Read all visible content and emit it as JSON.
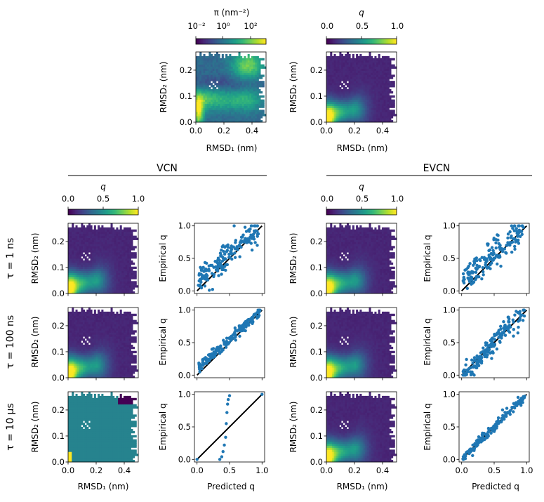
{
  "colors": {
    "viridis": [
      "#440154",
      "#482878",
      "#3e4989",
      "#31688e",
      "#26828e",
      "#1f9e89",
      "#35b779",
      "#6ece58",
      "#b5de2b",
      "#fde725"
    ],
    "scatter": "#1f77b4",
    "diagonal": "#000000",
    "background": "#ffffff"
  },
  "sections": {
    "vcn": "VCN",
    "evcn": "EVCN"
  },
  "row_labels": [
    "τ = 1 ns",
    "τ = 100 ns",
    "τ = 10 µs"
  ],
  "axis_labels": {
    "rmsd1": "RMSD₁ (nm)",
    "rmsd2": "RMSD₂ (nm)",
    "predicted": "Predicted q",
    "empirical": "Empirical q"
  },
  "colorbars": {
    "pi": {
      "label": "π (nm⁻²)",
      "scale": "log",
      "ticks": [
        "10⁻²",
        "10⁰",
        "10²"
      ]
    },
    "q": {
      "label": "q",
      "scale": "linear",
      "ticks": [
        "0.0",
        "0.5",
        "1.0"
      ]
    }
  },
  "chart_data": [
    {
      "id": "stationary-density",
      "type": "heatmap",
      "title": "π (nm⁻²)",
      "xlabel": "RMSD₁ (nm)",
      "ylabel": "RMSD₂ (nm)",
      "xlim": [
        0.0,
        0.5
      ],
      "ylim": [
        0.0,
        0.27
      ],
      "xticks": [
        0.0,
        0.2,
        0.4
      ],
      "yticks": [
        0.0,
        0.1,
        0.2
      ],
      "colorbar_range_log10": [
        -3,
        3
      ],
      "description_of_field": "high density near (0.02,0.04), (0.37,0.22), (0.05,0.09), (0.35,0.08)"
    },
    {
      "id": "reference-q",
      "type": "heatmap",
      "title": "q",
      "xlabel": "RMSD₁ (nm)",
      "ylabel": "RMSD₂ (nm)",
      "xlim": [
        0.0,
        0.5
      ],
      "ylim": [
        0.0,
        0.27
      ],
      "xticks": [
        0.0,
        0.2,
        0.4
      ],
      "yticks": [
        0.0,
        0.1,
        0.2
      ],
      "clim": [
        0.0,
        1.0
      ]
    },
    {
      "id": "vcn-heatmaps",
      "type": "heatmap",
      "rows": [
        "τ = 1 ns",
        "τ = 100 ns",
        "τ = 10 µs"
      ],
      "xlim": [
        0.0,
        0.5
      ],
      "ylim": [
        0.0,
        0.27
      ],
      "clim": [
        0.0,
        1.0
      ],
      "uniform_value_tau_10us": 0.45
    },
    {
      "id": "vcn-scatter",
      "type": "scatter",
      "xlabel": "Predicted q",
      "ylabel": "Empirical q",
      "xlim": [
        -0.04,
        1.04
      ],
      "ylim": [
        -0.04,
        1.04
      ],
      "xticks": [
        0.0,
        0.5,
        1.0
      ],
      "yticks": [
        0.0,
        0.5,
        1.0
      ],
      "diagonal": [
        [
          0,
          0
        ],
        [
          1,
          1
        ]
      ],
      "series": [
        {
          "name": "τ = 1 ns",
          "n_points": 180,
          "trend": "above diagonal, spread ±0.25"
        },
        {
          "name": "τ = 100 ns",
          "n_points": 170,
          "trend": "above diagonal, spread ±0.08"
        },
        {
          "name": "τ = 10 µs",
          "points_x": [
            0.0,
            0.35,
            0.38,
            0.4,
            0.42,
            0.44,
            0.45,
            0.46,
            0.47,
            0.48,
            0.5,
            1.0
          ],
          "points_y": [
            0.0,
            0.0,
            0.04,
            0.12,
            0.22,
            0.34,
            0.55,
            0.72,
            0.85,
            0.92,
            0.98,
            1.0
          ]
        }
      ]
    },
    {
      "id": "evcn-heatmaps",
      "type": "heatmap",
      "rows": [
        "τ = 1 ns",
        "τ = 100 ns",
        "τ = 10 µs"
      ],
      "xlim": [
        0.0,
        0.5
      ],
      "ylim": [
        0.0,
        0.27
      ],
      "clim": [
        0.0,
        1.0
      ]
    },
    {
      "id": "evcn-scatter",
      "type": "scatter",
      "xlabel": "Predicted q",
      "ylabel": "Empirical q",
      "xlim": [
        -0.04,
        1.04
      ],
      "ylim": [
        -0.04,
        1.04
      ],
      "xticks": [
        0.0,
        0.5,
        1.0
      ],
      "yticks": [
        0.0,
        0.5,
        1.0
      ],
      "diagonal": [
        [
          0,
          0
        ],
        [
          1,
          1
        ]
      ],
      "series": [
        {
          "name": "τ = 1 ns",
          "n_points": 180,
          "trend": "above diagonal, spread ±0.25"
        },
        {
          "name": "τ = 100 ns",
          "n_points": 180,
          "trend": "sigmoidal around diagonal"
        },
        {
          "name": "τ = 10 µs",
          "n_points": 170,
          "trend": "on diagonal, spread ±0.05"
        }
      ]
    }
  ]
}
